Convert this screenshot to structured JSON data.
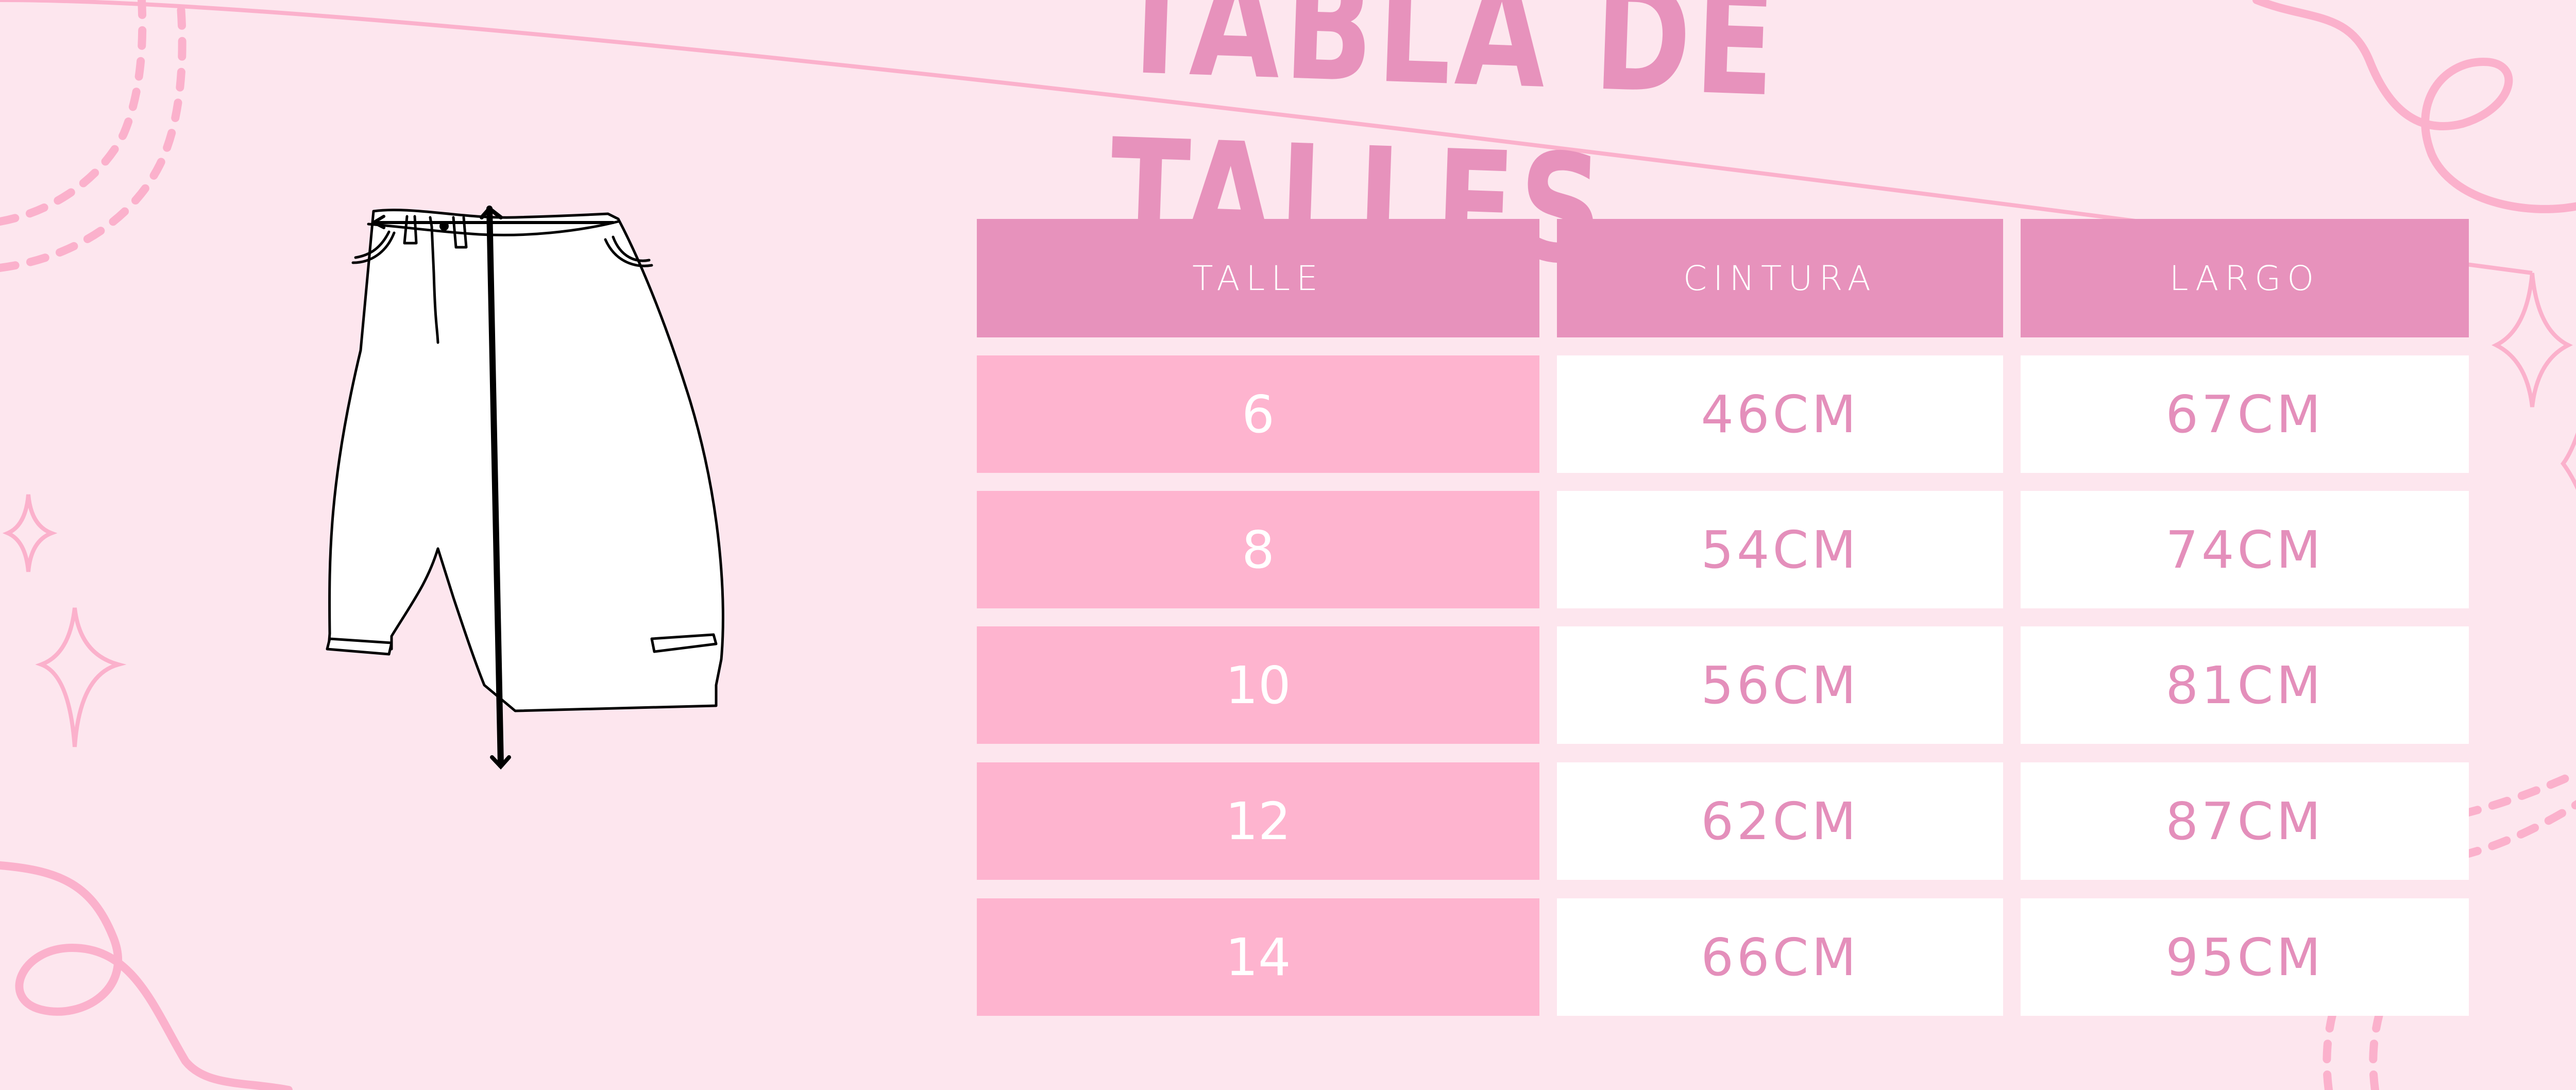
{
  "title": "TABLA DE TALLES",
  "table": {
    "headers": [
      "TALLE",
      "CINTURA",
      "LARGO"
    ],
    "rows": [
      [
        "6",
        "46CM",
        "67CM"
      ],
      [
        "8",
        "54CM",
        "74CM"
      ],
      [
        "10",
        "56CM",
        "81CM"
      ],
      [
        "12",
        "62CM",
        "87CM"
      ],
      [
        "14",
        "66CM",
        "95CM"
      ]
    ]
  },
  "colors": {
    "background": "#fde6ee",
    "header": "#e792bc",
    "size_column": "#feb4cf",
    "value_text": "#e48fbb",
    "decoration": "#fbb1cc"
  },
  "icons": [
    "pants-measurement-illustration",
    "sparkle-icon",
    "swirl-decoration"
  ]
}
